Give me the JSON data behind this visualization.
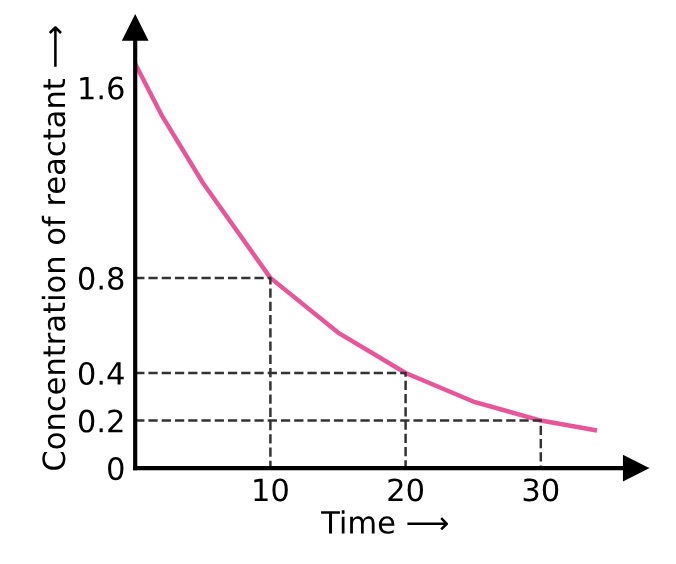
{
  "chart_data": {
    "type": "line",
    "xlabel": "Time ⟶",
    "ylabel": "Concentration of reactant ⟶",
    "xlim": [
      0,
      37
    ],
    "ylim": [
      0,
      1.85
    ],
    "xticks": [
      10,
      20,
      30
    ],
    "yticks": [
      0,
      0.2,
      0.4,
      0.8,
      1.6
    ],
    "grid": false,
    "legend": false,
    "series": [
      {
        "color": "#e8559a",
        "x": [
          0,
          2,
          5,
          10,
          15,
          20,
          25,
          30,
          34
        ],
        "values": [
          1.7,
          1.48,
          1.2,
          0.8,
          0.57,
          0.4,
          0.28,
          0.2,
          0.16
        ]
      },
      {
        "color": "#333333",
        "line_style": "dashed",
        "x": [
          0,
          10,
          10
        ],
        "values": [
          0.8,
          0.8,
          0
        ]
      },
      {
        "color": "#333333",
        "line_style": "dashed",
        "x": [
          0,
          20,
          20
        ],
        "values": [
          0.4,
          0.4,
          0
        ]
      },
      {
        "color": "#333333",
        "line_style": "dashed",
        "x": [
          0,
          30,
          30
        ],
        "values": [
          0.2,
          0.2,
          0
        ]
      }
    ]
  }
}
